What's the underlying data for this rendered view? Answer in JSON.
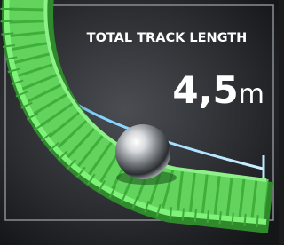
{
  "caption": {
    "label": "TOTAL TRACK LENGTH",
    "value": "4,5",
    "unit": "m"
  }
}
